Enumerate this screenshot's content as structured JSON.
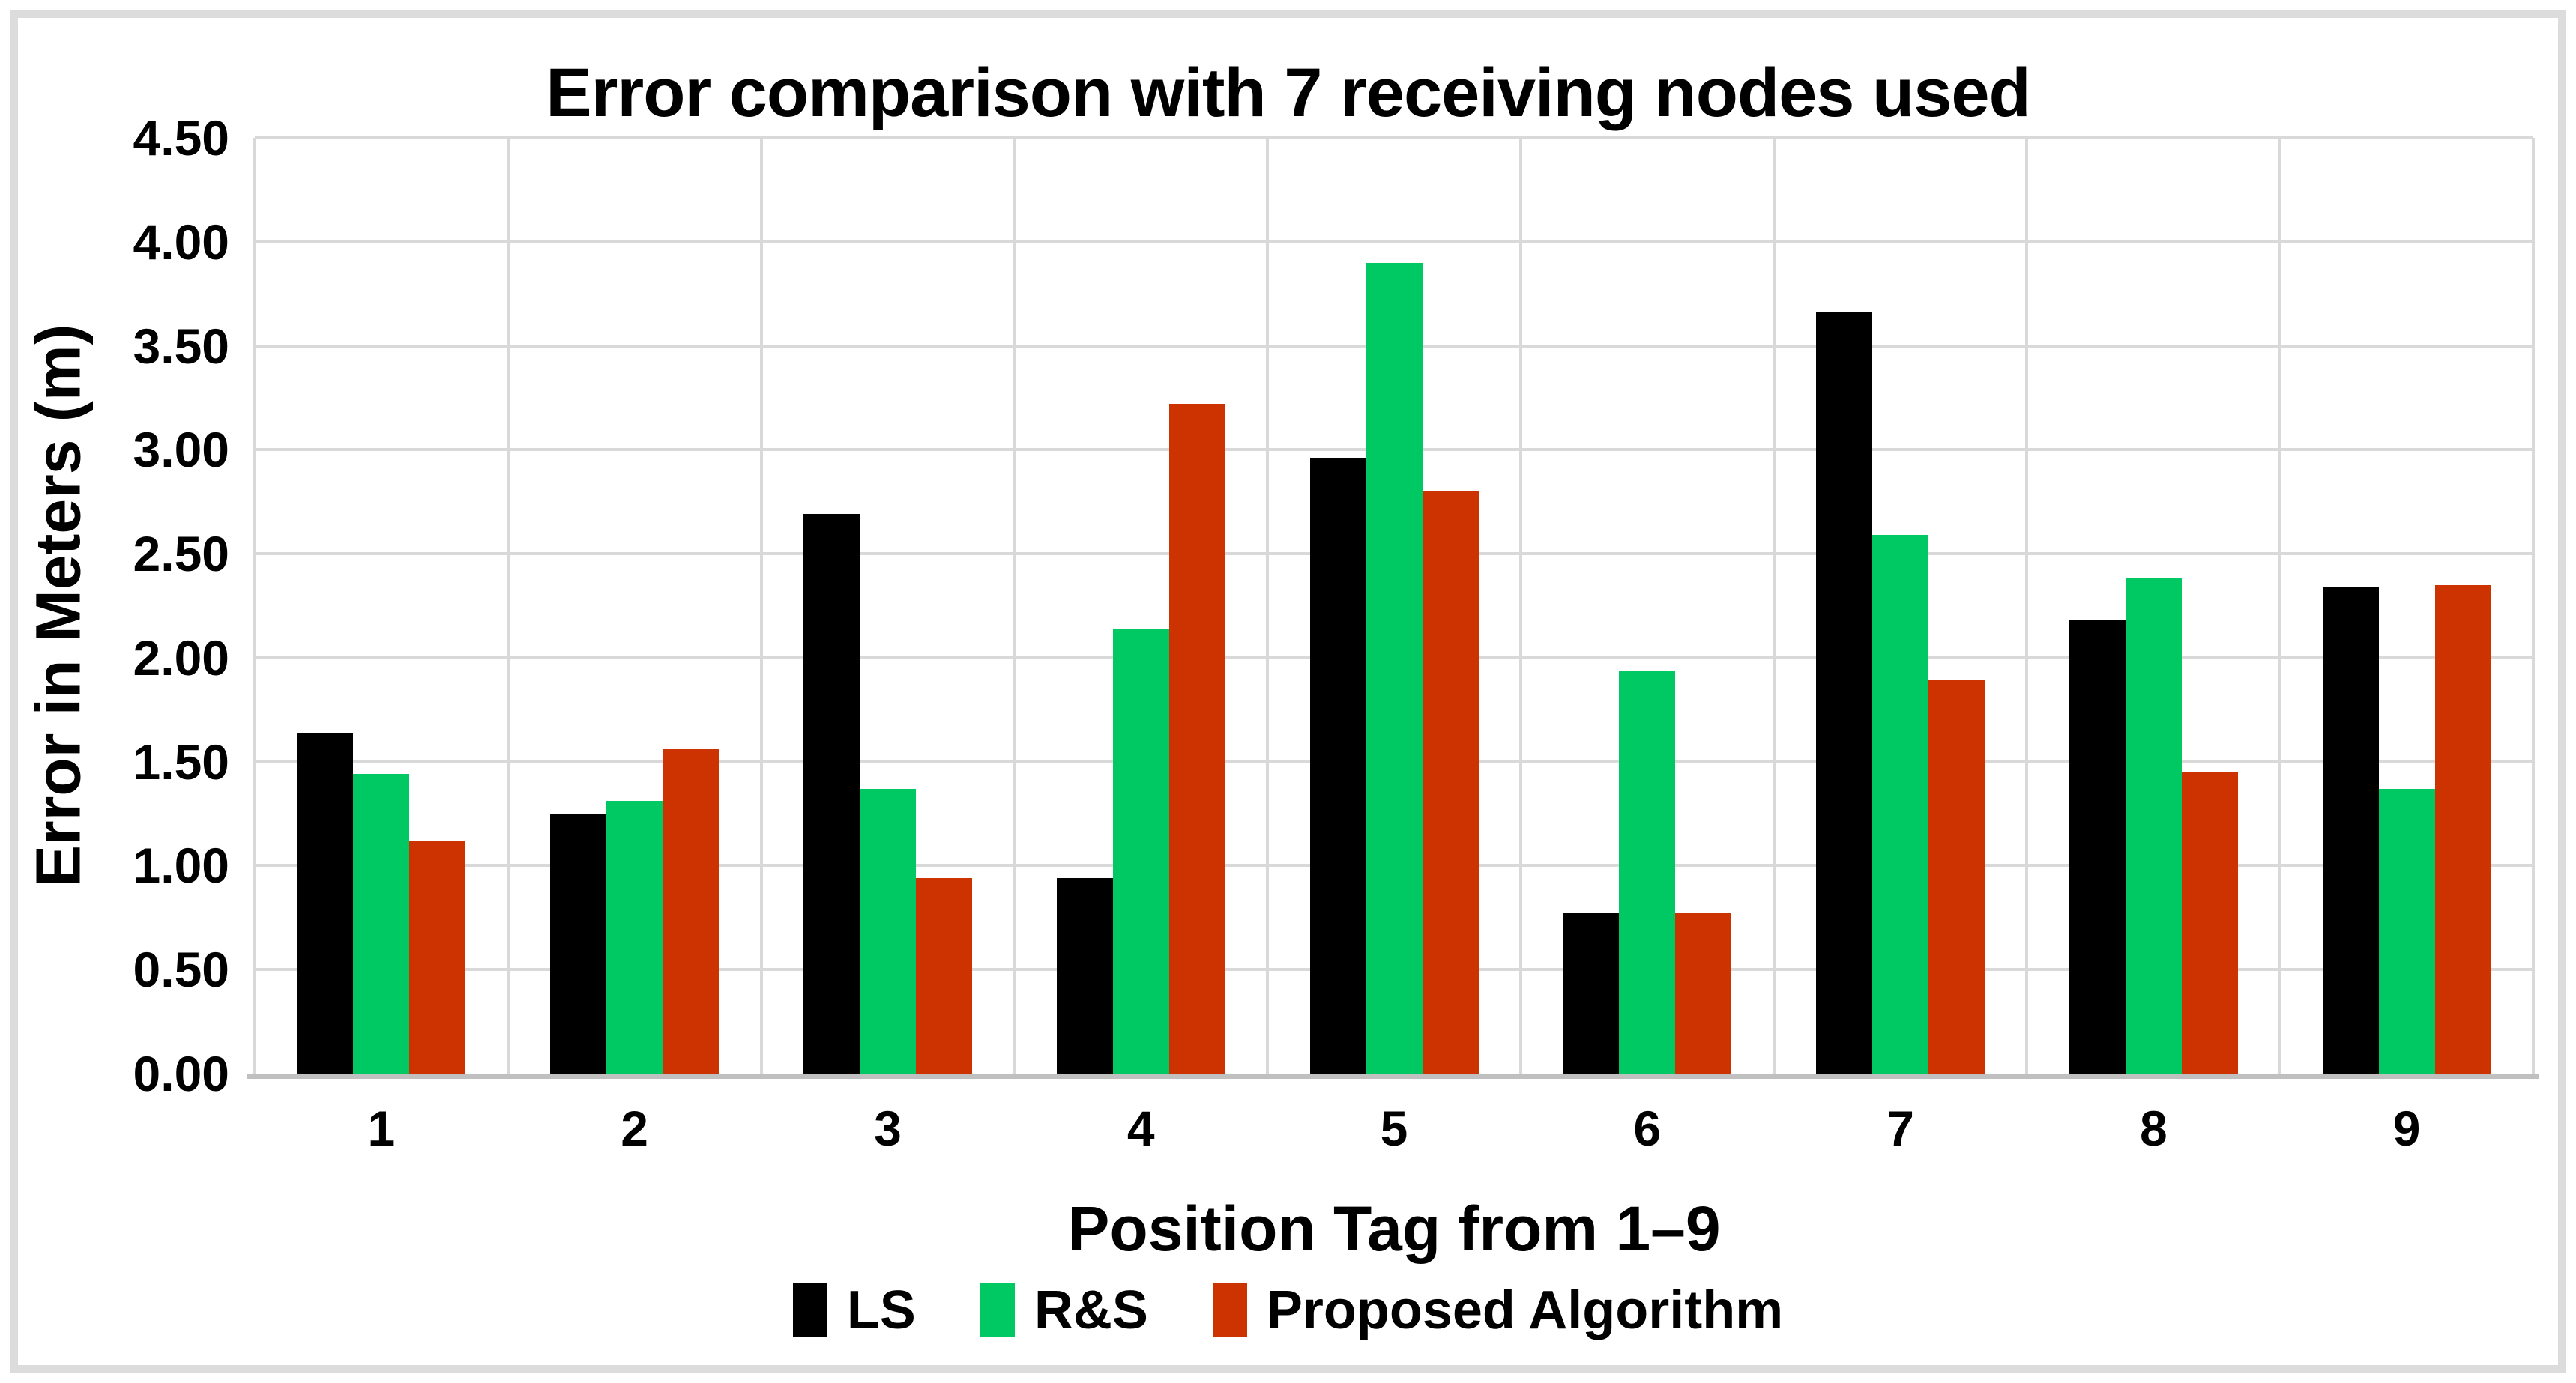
{
  "chart_data": {
    "type": "bar",
    "title": "Error comparison with 7 receiving nodes used",
    "categories": [
      "1",
      "2",
      "3",
      "4",
      "5",
      "6",
      "7",
      "8",
      "9"
    ],
    "series": [
      {
        "name": "LS",
        "color": "#000000",
        "values": [
          1.64,
          1.25,
          2.69,
          0.94,
          2.96,
          0.77,
          3.66,
          2.18,
          2.34
        ]
      },
      {
        "name": "R&S",
        "color": "#00C863",
        "values": [
          1.44,
          1.31,
          1.37,
          2.14,
          3.9,
          1.94,
          2.59,
          2.38,
          1.37
        ]
      },
      {
        "name": "Proposed Algorithm",
        "color": "#CC3300",
        "values": [
          1.12,
          1.56,
          0.94,
          3.22,
          2.8,
          0.77,
          1.89,
          1.45,
          2.35
        ]
      }
    ],
    "xlabel": "Position Tag from 1–9",
    "ylabel": "Error in Meters (m)",
    "ylim": [
      0,
      4.5
    ],
    "ytick_step": 0.5,
    "ytick_labels": [
      "0.00",
      "0.50",
      "1.00",
      "1.50",
      "2.00",
      "2.50",
      "3.00",
      "3.50",
      "4.00",
      "4.50"
    ],
    "grid": true,
    "legend_position": "bottom"
  },
  "colors": {
    "gridline": "#D9D9D9",
    "axis_line": "#C0C0C0",
    "frame_border": "#DCDCDC",
    "text": "#000000",
    "background": "#FFFFFF"
  }
}
